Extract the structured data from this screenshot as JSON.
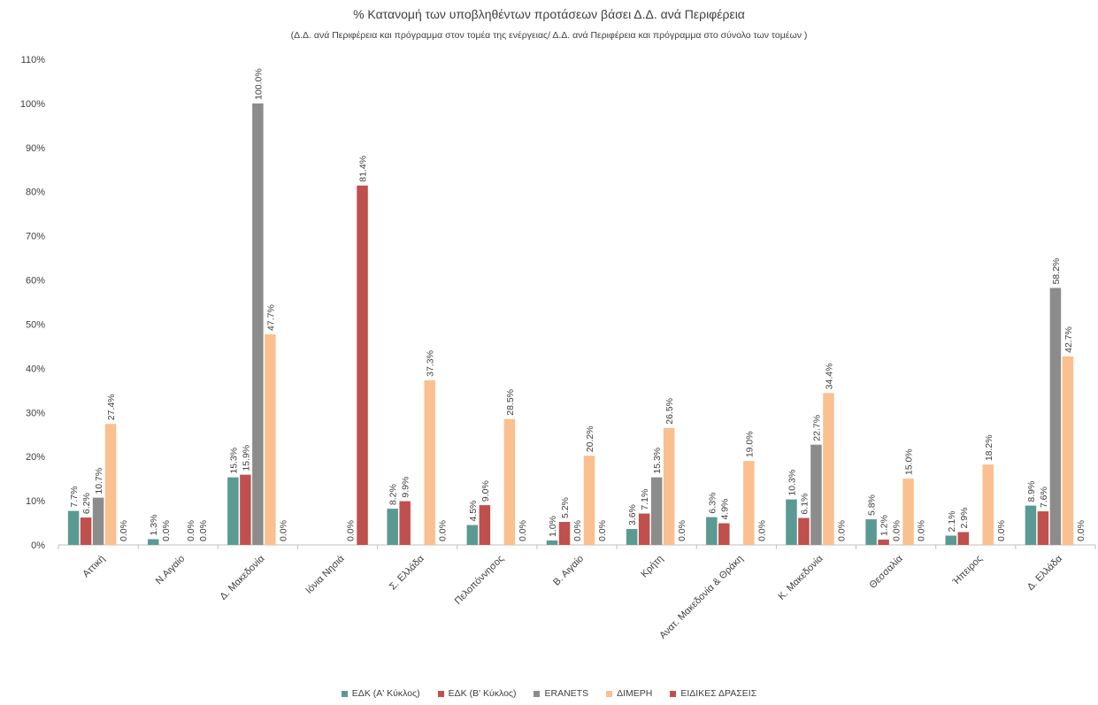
{
  "chart_data": {
    "type": "bar",
    "title": "% Κατανομή των υποβληθέντων προτάσεων βάσει Δ.Δ. ανά Περιφέρεια",
    "subtitle": "(Δ.Δ. ανά Περιφέρεια και πρόγραμμα στον τομέα της ενέργειας/ Δ.Δ. ανά Περιφέρεια και πρόγραμμα στο σύνολο των τομέων )",
    "ylim": [
      0,
      110
    ],
    "yticks": [
      "0%",
      "10%",
      "20%",
      "30%",
      "40%",
      "50%",
      "60%",
      "70%",
      "80%",
      "90%",
      "100%",
      "110%"
    ],
    "grid": false,
    "legend_position": "bottom",
    "categories": [
      "Αττική",
      "Ν.Αιγαίο",
      "Δ. Μακεδονία",
      "Ιόνια Νησιά",
      "Σ. Ελλάδα",
      "Πελοπόννησος",
      "Β. Αιγαίο",
      "Κρήτη",
      "Ανατ. Μακεδονία & Θράκη",
      "Κ. Μακεδονία",
      "Θεσσαλία",
      "Ήπειρος",
      "Δ. Ελλάδα"
    ],
    "series": [
      {
        "name": "ΕΔΚ (Α' Κύκλος)",
        "color": "#5b9a92",
        "values": [
          7.7,
          1.3,
          15.3,
          null,
          8.2,
          4.5,
          1.0,
          3.6,
          6.3,
          10.3,
          5.8,
          2.1,
          8.9
        ],
        "labels": [
          "7.7%",
          "1.3%",
          "15.3%",
          "",
          "8.2%",
          "4.5%",
          "1.0%",
          "3.6%",
          "6.3%",
          "10.3%",
          "5.8%",
          "2.1%",
          "8.9%"
        ]
      },
      {
        "name": "ΕΔΚ (Β' Κύκλος)",
        "color": "#c0504d",
        "values": [
          6.2,
          0.0,
          15.9,
          null,
          9.9,
          9.0,
          5.2,
          7.1,
          4.9,
          6.1,
          1.2,
          2.9,
          7.6
        ],
        "labels": [
          "6.2%",
          "0.0%",
          "15.9%",
          "",
          "9.9%",
          "9.0%",
          "5.2%",
          "7.1%",
          "4.9%",
          "6.1%",
          "1.2%",
          "2.9%",
          "7.6%"
        ]
      },
      {
        "name": "ERANETS",
        "color": "#8c8c8c",
        "values": [
          10.7,
          null,
          100.0,
          null,
          null,
          null,
          0.0,
          15.3,
          null,
          22.7,
          0.0,
          null,
          58.2
        ],
        "labels": [
          "10.7%",
          "",
          "100.0%",
          "",
          "",
          "",
          "0.0%",
          "15.3%",
          "",
          "22.7%",
          "0.0%",
          "",
          "58.2%"
        ]
      },
      {
        "name": "ΔΙΜΕΡΗ",
        "color": "#fac08f",
        "values": [
          27.4,
          0.0,
          47.7,
          0.0,
          37.3,
          28.5,
          20.2,
          26.5,
          19.0,
          34.4,
          15.0,
          18.2,
          42.7
        ],
        "labels": [
          "27.4%",
          "0.0%",
          "47.7%",
          "0.0%",
          "37.3%",
          "28.5%",
          "20.2%",
          "26.5%",
          "19.0%",
          "34.4%",
          "15.0%",
          "18.2%",
          "42.7%"
        ]
      },
      {
        "name": "ΕΙΔΙΚΕΣ ΔΡΑΣΕΙΣ",
        "color": "#c0504d",
        "values": [
          0.0,
          0.0,
          0.0,
          81.4,
          0.0,
          0.0,
          0.0,
          0.0,
          0.0,
          0.0,
          0.0,
          0.0,
          0.0
        ],
        "labels": [
          "0.0%",
          "0.0%",
          "0.0%",
          "81.4%",
          "0.0%",
          "0.0%",
          "0.0%",
          "0.0%",
          "0.0%",
          "0.0%",
          "0.0%",
          "0.0%",
          "0.0%"
        ]
      }
    ]
  }
}
